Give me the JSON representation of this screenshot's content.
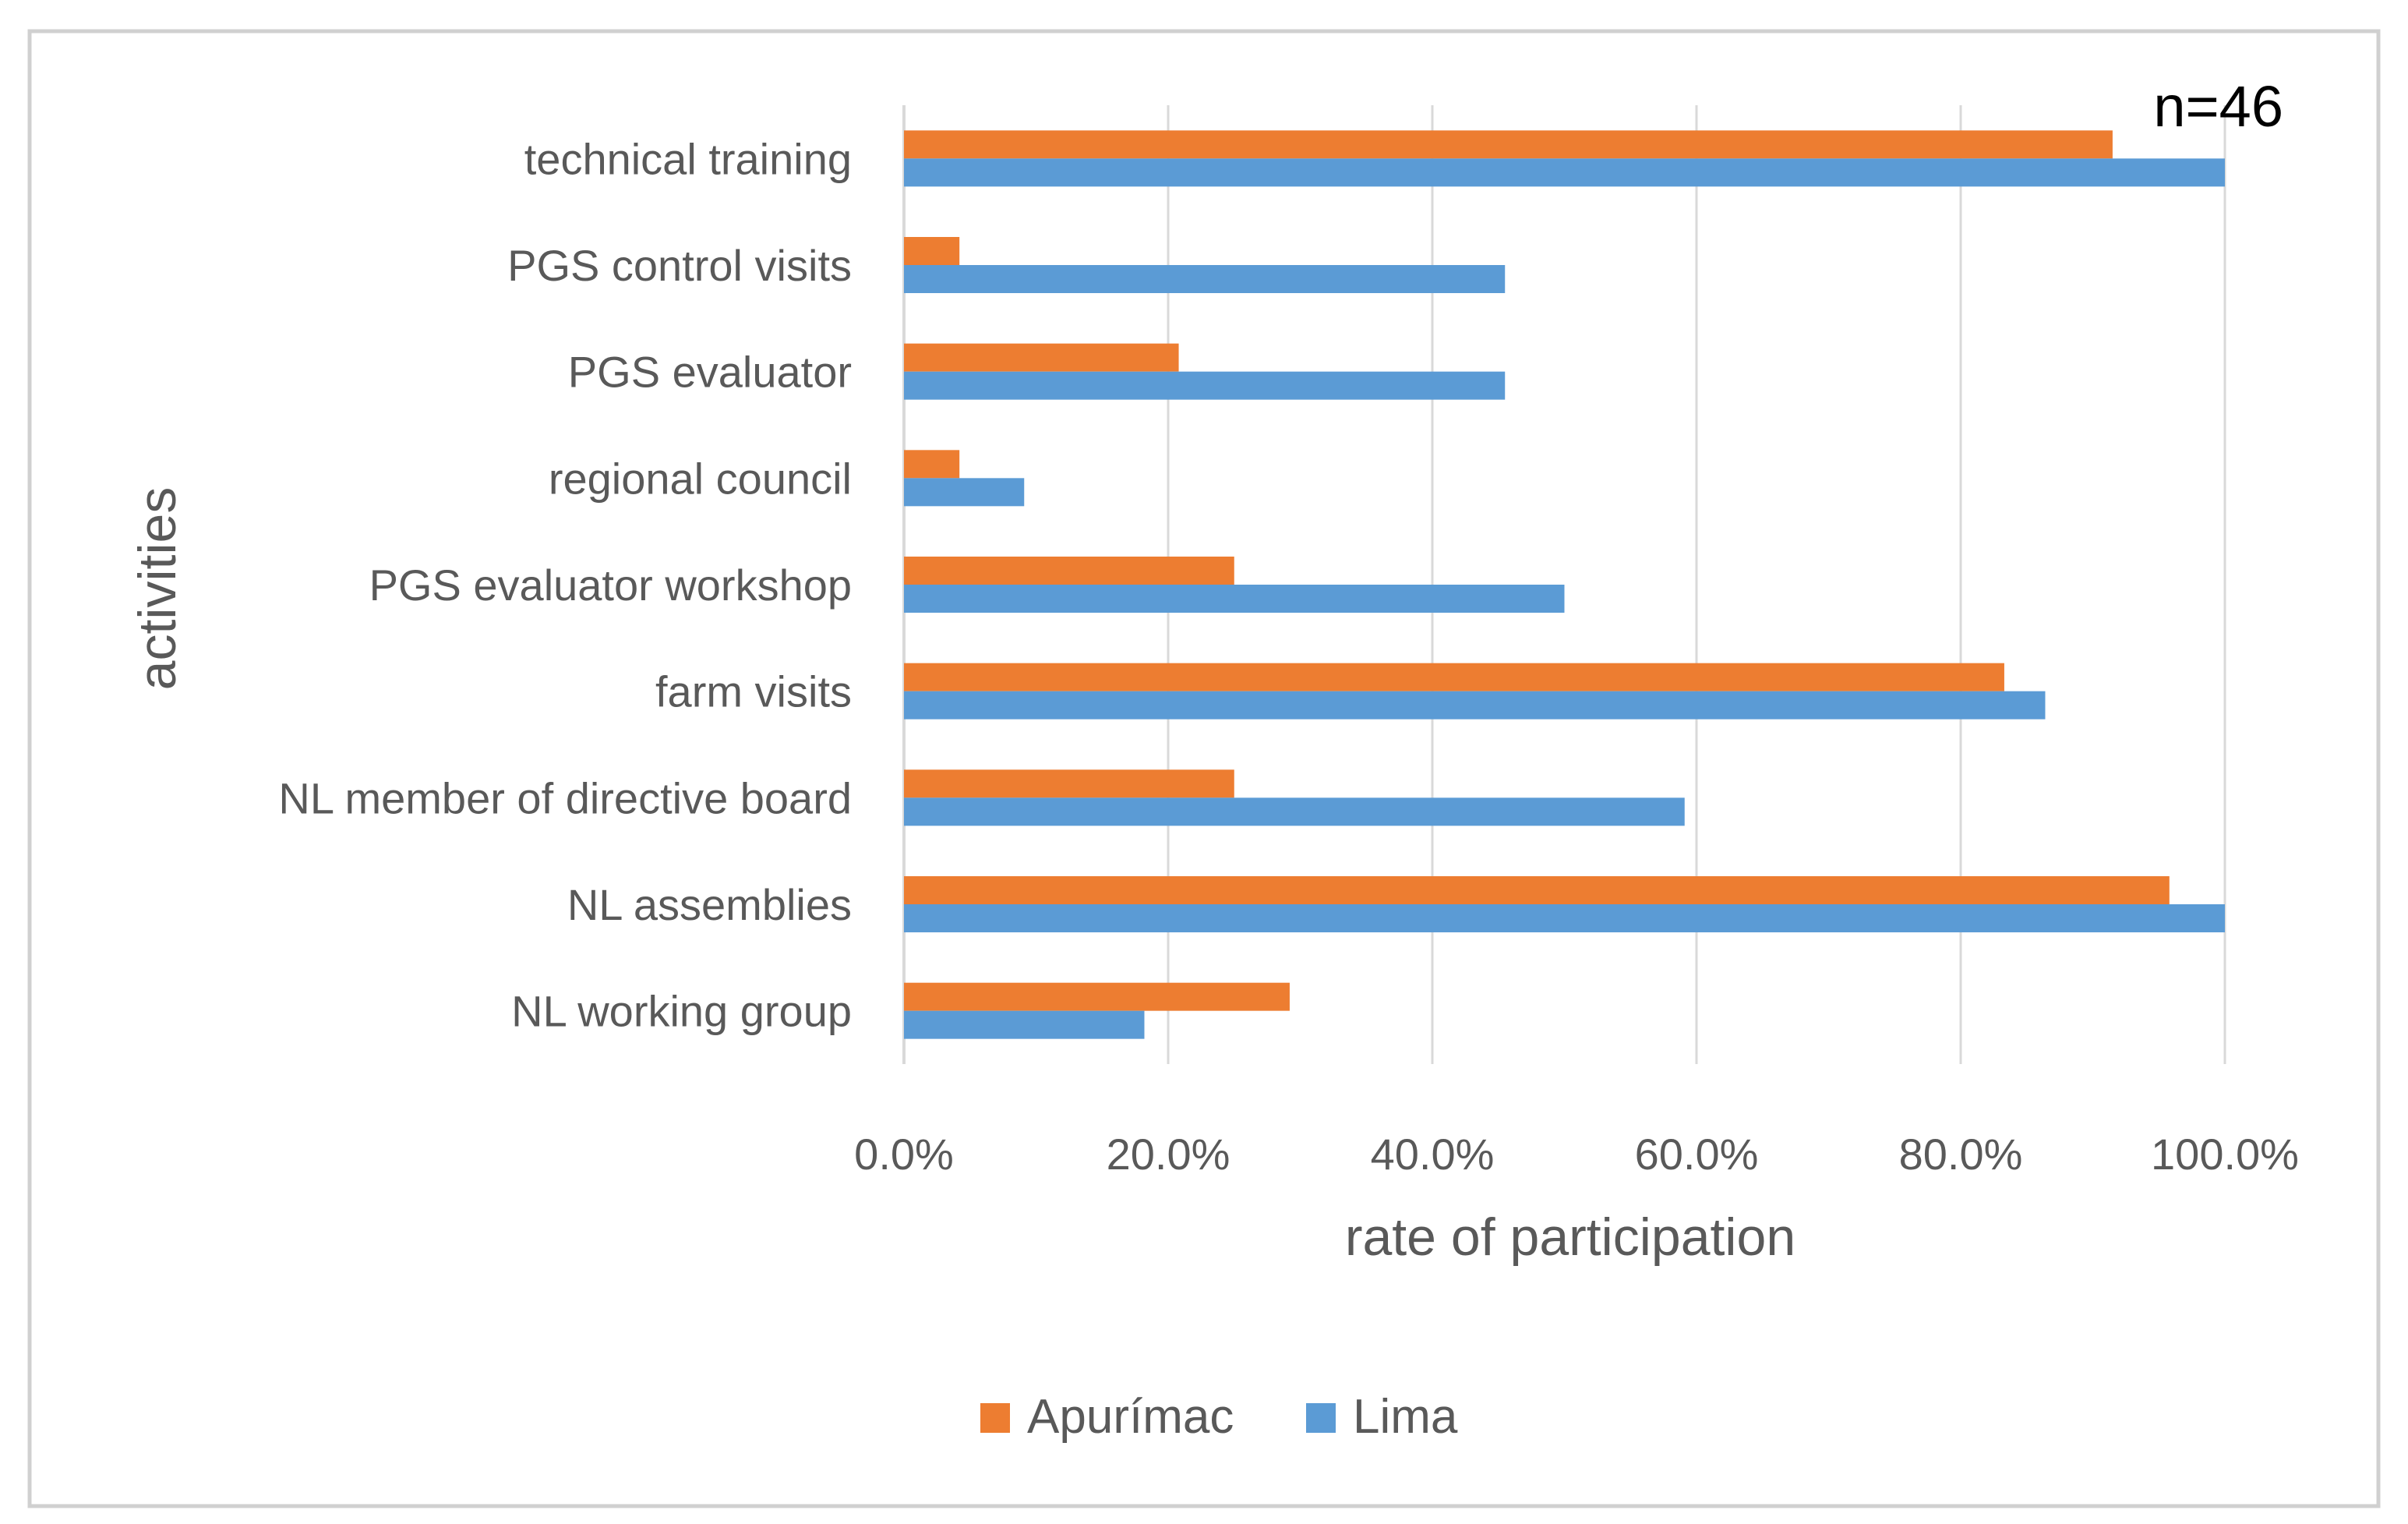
{
  "chart_data": {
    "type": "bar",
    "orientation": "horizontal",
    "title": "",
    "annotation": "n=46",
    "xlabel": "rate of participation",
    "ylabel": "activities",
    "xlim": [
      0,
      100
    ],
    "xticks": [
      "0.0%",
      "20.0%",
      "40.0%",
      "60.0%",
      "80.0%",
      "100.0%"
    ],
    "grid": true,
    "legend_position": "bottom",
    "categories": [
      "technical training",
      "PGS control visits",
      "PGS evaluator",
      "regional council",
      "PGS evaluator workshop",
      "farm visits",
      "NL member of directive board",
      "NL assemblies",
      "NL working group"
    ],
    "series": [
      {
        "name": "Apurímac",
        "color": "#ED7D31",
        "values": [
          91.5,
          4.2,
          20.8,
          4.2,
          25.0,
          83.3,
          25.0,
          95.8,
          29.2
        ]
      },
      {
        "name": "Lima",
        "color": "#5B9BD5",
        "values": [
          100.0,
          45.5,
          45.5,
          9.1,
          50.0,
          86.4,
          59.1,
          100.0,
          18.2
        ]
      }
    ]
  }
}
